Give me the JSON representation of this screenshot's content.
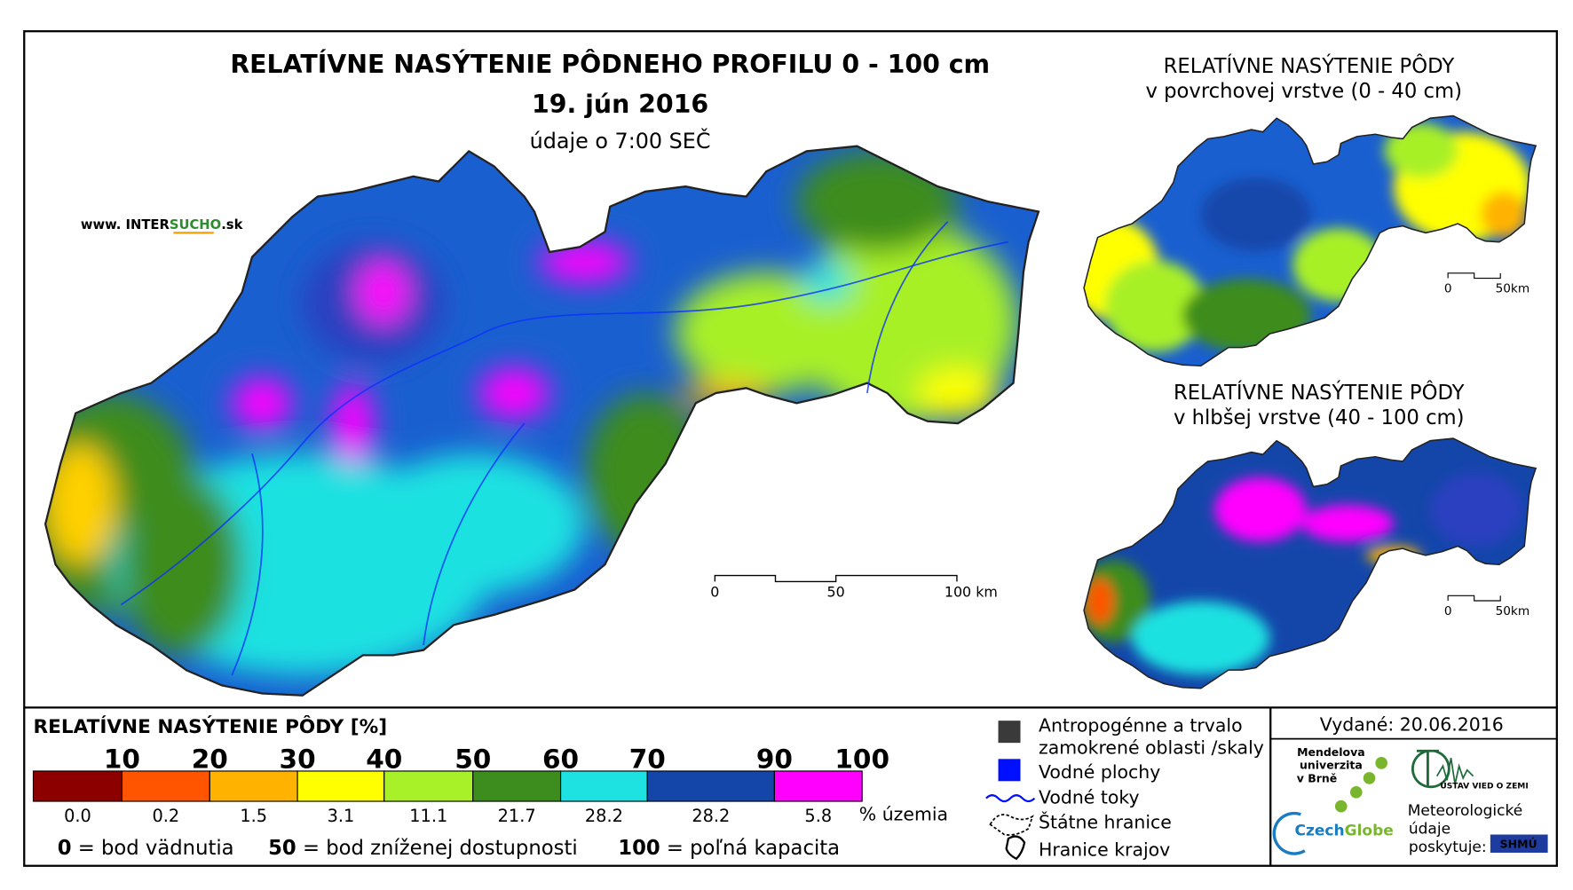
{
  "main_map": {
    "title": "RELATÍVNE NASÝTENIE PÔDNEHO PROFILU 0 - 100 cm",
    "date": "19. jún 2016",
    "time_note": "údaje o 7:00 SEČ",
    "source": [
      "www. INTER",
      "SUCHO",
      ".sk"
    ],
    "scale_labels": [
      "0",
      "50",
      "100 km"
    ]
  },
  "insets": [
    {
      "title": [
        "RELATÍVNE NASÝTENIE PÔDY",
        "v povrchovej vrstve (0 - 40 cm)"
      ],
      "scale_labels": [
        "0",
        "50km"
      ]
    },
    {
      "title": [
        "RELATÍVNE NASÝTENIE PÔDY",
        "v hlbšej vrstve (40 - 100 cm)"
      ],
      "scale_labels": [
        "0",
        "50km"
      ]
    }
  ],
  "legend": {
    "title": "RELATÍVNE NASÝTENIE PÔDY [%]",
    "classes": [
      {
        "bound": "10",
        "color": "#8c0000",
        "share": "0.0"
      },
      {
        "bound": "20",
        "color": "#ff5500",
        "share": "0.2"
      },
      {
        "bound": "30",
        "color": "#ffb300",
        "share": "1.5"
      },
      {
        "bound": "40",
        "color": "#ffff00",
        "share": "3.1"
      },
      {
        "bound": "50",
        "color": "#a8f028",
        "share": "11.1"
      },
      {
        "bound": "60",
        "color": "#3c8c1e",
        "share": "21.7"
      },
      {
        "bound": "70",
        "color": "#1ee1e1",
        "share": "28.2"
      },
      {
        "bound": "90",
        "color": "#1446aa",
        "share": "28.2"
      },
      {
        "bound": "100",
        "color": "#ff00ff",
        "share": "5.8"
      }
    ],
    "share_unit": "% územia",
    "notes": [
      {
        "value": "0",
        "text": " = bod vädnutia"
      },
      {
        "value": "50",
        "text": " = bod zníženej dostupnosti"
      },
      {
        "value": "100",
        "text": " = poľná kapacita"
      }
    ]
  },
  "symbols": {
    "anthropogenic": [
      "Antropogénne a trvalo",
      "zamokrené oblasti /skaly"
    ],
    "water_bodies": "Vodné plochy",
    "rivers": "Vodné toky",
    "state_border": "Štátne hranice",
    "region_border": "Hranice krajov"
  },
  "footer": {
    "issued": "Vydané: 20.06.2016",
    "mendel": [
      "Mendelova",
      "univerzita",
      "v Brně"
    ],
    "czechglobe": [
      "Czech",
      "Globe"
    ],
    "ustav": "ÚSTAV VIED O ZEMI",
    "provider": [
      "Meteorologické",
      "údaje",
      "poskytuje:"
    ],
    "shmu": "SHMÚ"
  }
}
